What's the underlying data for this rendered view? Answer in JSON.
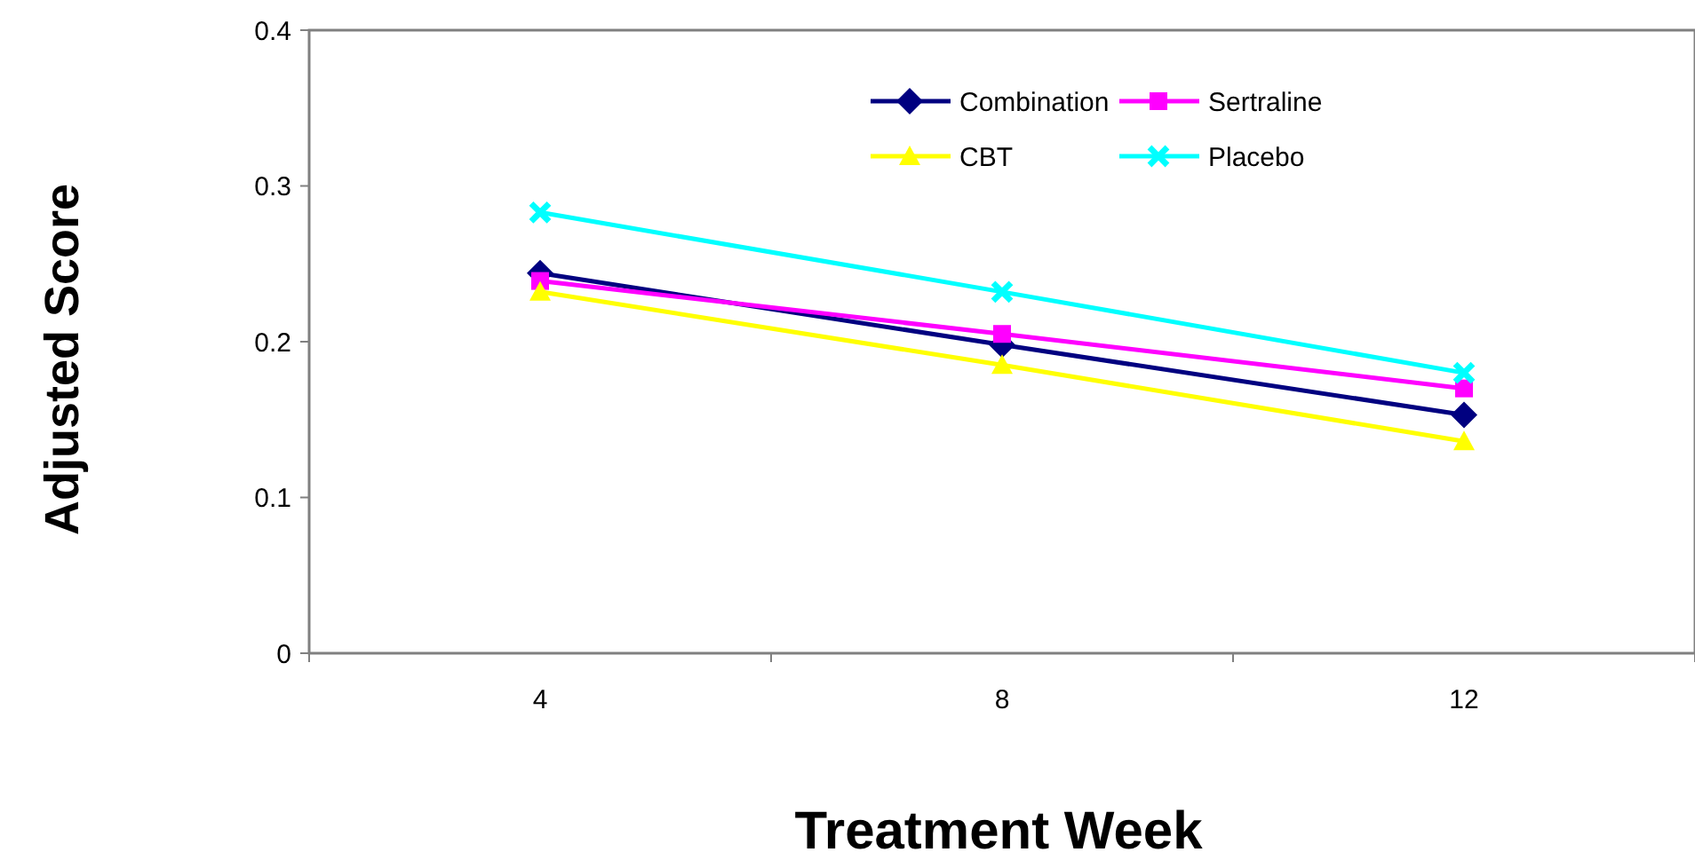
{
  "chart_data": {
    "type": "line",
    "xlabel": "Treatment Week",
    "ylabel": "Adjusted Score",
    "categories": [
      "4",
      "8",
      "12"
    ],
    "series": [
      {
        "name": "Combination",
        "color": "#000080",
        "marker": "diamond",
        "values": [
          0.244,
          0.198,
          0.153
        ]
      },
      {
        "name": "Sertraline",
        "color": "#ff00ff",
        "marker": "square",
        "values": [
          0.239,
          0.205,
          0.17
        ]
      },
      {
        "name": "CBT",
        "color": "#ffff00",
        "marker": "triangle",
        "values": [
          0.232,
          0.185,
          0.136
        ]
      },
      {
        "name": "Placebo",
        "color": "#00ffff",
        "marker": "cross",
        "values": [
          0.283,
          0.232,
          0.18
        ]
      }
    ],
    "ylim": [
      0,
      0.4
    ],
    "yticks": [
      0,
      0.1,
      0.2,
      0.3,
      0.4
    ],
    "grid": false,
    "legend": "top right"
  }
}
